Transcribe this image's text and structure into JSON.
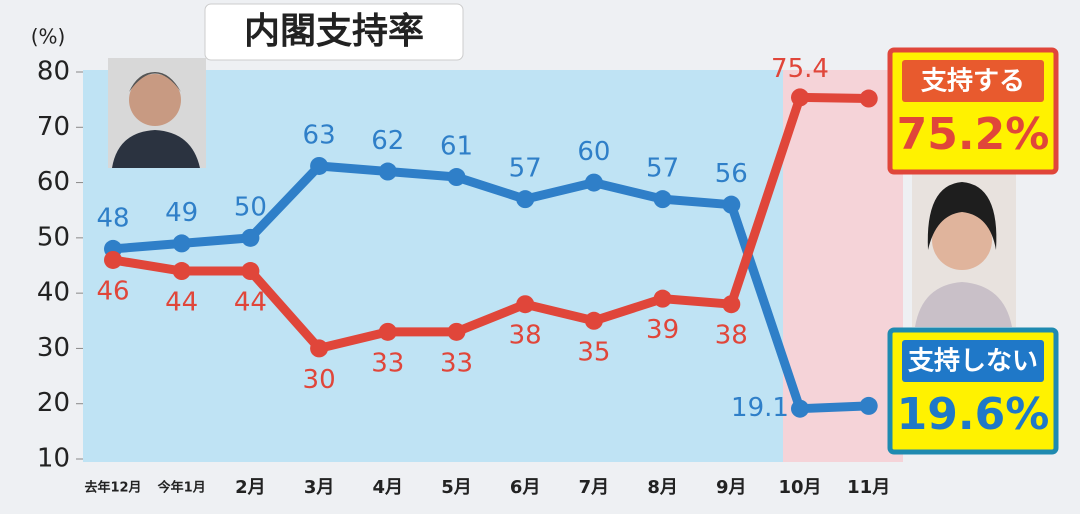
{
  "chart_data": {
    "type": "line",
    "title": "内閣支持率",
    "y_label": "(%)",
    "categories": [
      "去年12月",
      "今年1月",
      "2月",
      "3月",
      "4月",
      "5月",
      "6月",
      "7月",
      "8月",
      "9月",
      "10月",
      "11月"
    ],
    "series": [
      {
        "name": "支持しない",
        "color": "#2f7fc8",
        "values": [
          48,
          49,
          50,
          63,
          62,
          61,
          57,
          60,
          57,
          56,
          19.1,
          19.6
        ],
        "value_labels": [
          "48",
          "49",
          "50",
          "63",
          "62",
          "61",
          "57",
          "60",
          "57",
          "56",
          "19.1",
          "19.6%"
        ]
      },
      {
        "name": "支持する",
        "color": "#e0463a",
        "values": [
          46,
          44,
          44,
          30,
          33,
          33,
          38,
          35,
          39,
          38,
          75.4,
          75.2
        ],
        "value_labels": [
          "46",
          "44",
          "44",
          "30",
          "33",
          "33",
          "38",
          "35",
          "39",
          "38",
          "75.4",
          "75.2%"
        ]
      }
    ],
    "ylim": [
      10,
      80
    ],
    "yticks": [
      10,
      20,
      30,
      40,
      50,
      60,
      70,
      80
    ]
  }
}
